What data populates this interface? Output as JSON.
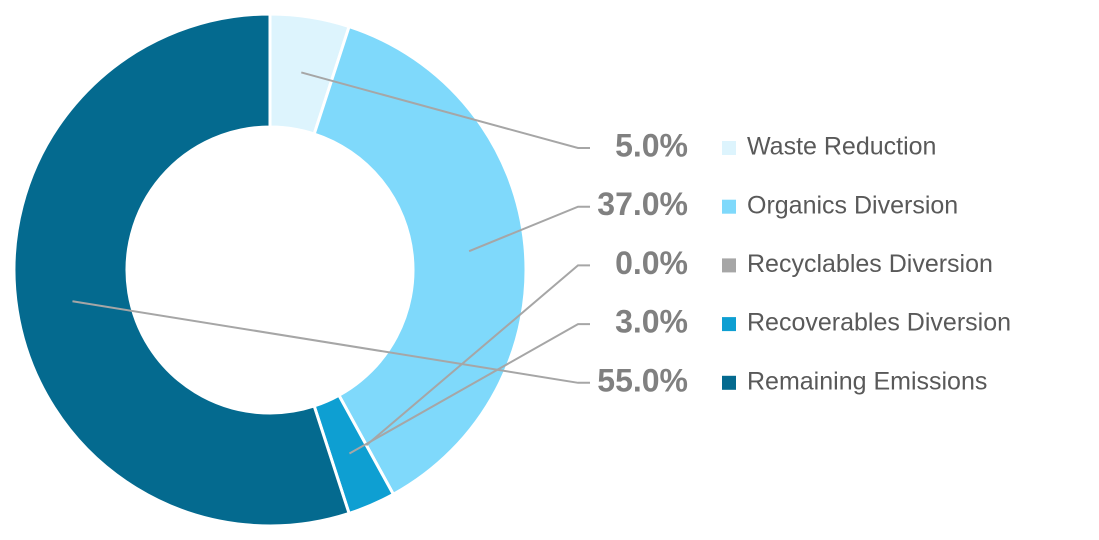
{
  "chart_data": {
    "type": "donut",
    "categories": [
      "Waste Reduction",
      "Organics Diversion",
      "Recyclables Diversion",
      "Recoverables Diversion",
      "Remaining Emissions"
    ],
    "values": [
      5,
      37,
      0,
      3,
      55
    ],
    "value_labels": [
      "5.0%",
      "37.0%",
      "0.0%",
      "3.0%",
      "55.0%"
    ],
    "colors": [
      "#ddf4fd",
      "#7fd9fb",
      "#a6a6a6",
      "#0e9fd2",
      "#046a8f"
    ]
  }
}
